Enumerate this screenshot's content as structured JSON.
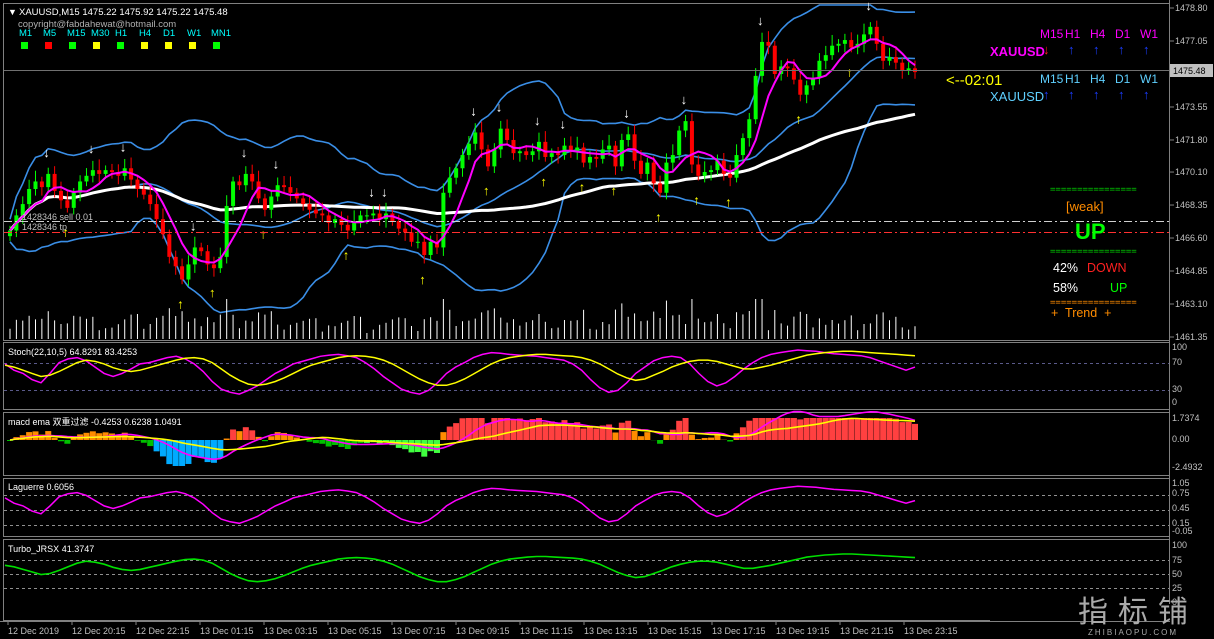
{
  "header": {
    "symbol_line": "XAUUSD,M15  1475.22 1475.92 1475.22 1475.48",
    "copyright": "copyright@fabdahewat@hotmail.com",
    "timeframes": [
      {
        "label": "M1",
        "color": "#00ff00"
      },
      {
        "label": "M5",
        "color": "#ff0000"
      },
      {
        "label": "M15",
        "color": "#00ff00"
      },
      {
        "label": "M30",
        "color": "#ffff00"
      },
      {
        "label": "H1",
        "color": "#00ff00"
      },
      {
        "label": "H4",
        "color": "#ffff00"
      },
      {
        "label": "D1",
        "color": "#ffff00"
      },
      {
        "label": "W1",
        "color": "#ffff00"
      },
      {
        "label": "MN1",
        "color": "#00ff00"
      }
    ]
  },
  "order_lines": {
    "sell_label": "1428346 sell 0.01",
    "tp_label": "1428346 tp"
  },
  "right_panel": {
    "row1": {
      "labels": [
        "M15",
        "H1",
        "H4",
        "D1",
        "W1"
      ],
      "arrows": [
        "down",
        "up",
        "up",
        "up",
        "up"
      ],
      "symbol": "XAUUSD"
    },
    "timer": "<--02:01",
    "row2": {
      "labels": [
        "M15",
        "H1",
        "H4",
        "D1",
        "W1"
      ],
      "arrows": [
        "up",
        "up",
        "up",
        "up",
        "up"
      ],
      "symbol": "XAUUSD"
    },
    "dashes": "================",
    "weak": "[weak]",
    "up_big": "UP",
    "down_pct": "42%",
    "down_label": "DOWN",
    "up_pct": "58%",
    "up_label": "UP",
    "trend": "+  Trend  +"
  },
  "price_axis": {
    "ticks": [
      "1478.80",
      "1477.05",
      "1475.48",
      "1473.55",
      "1471.80",
      "1470.10",
      "1468.35",
      "1466.60",
      "1464.85",
      "1463.10",
      "1461.35"
    ],
    "current": "1475.48"
  },
  "subwindows": {
    "stoch": {
      "title": "Stoch(22,10,5) 64.8291 83.4253",
      "ticks": [
        "100",
        "70",
        "30",
        "0"
      ]
    },
    "macd": {
      "title": "macd ema 双重过滤 -0.4253 0.6238 1.0491",
      "ticks": [
        "1.7374",
        "0.00",
        "-2.4932"
      ]
    },
    "laguerre": {
      "title": "Laguerre 0.6056",
      "ticks": [
        "1.05",
        "0.75",
        "0.45",
        "0.15",
        "-0.05"
      ]
    },
    "turbo": {
      "title": "Turbo_JRSX 41.3747",
      "ticks": [
        "100",
        "75",
        "50",
        "25",
        "0"
      ]
    }
  },
  "time_axis": [
    "12 Dec 2019",
    "12 Dec 20:15",
    "12 Dec 22:15",
    "13 Dec 01:15",
    "13 Dec 03:15",
    "13 Dec 05:15",
    "13 Dec 07:15",
    "13 Dec 09:15",
    "13 Dec 11:15",
    "13 Dec 13:15",
    "13 Dec 15:15",
    "13 Dec 17:15",
    "13 Dec 19:15",
    "13 Dec 21:15",
    "13 Dec 23:15"
  ],
  "watermark": {
    "big": "指标铺",
    "small": "ZHIBIAOPU.COM"
  },
  "colors": {
    "bull": "#00ff00",
    "bear": "#ff0000",
    "band": "#3a8ee6",
    "ma": "#ffffff",
    "magenta": "#ff00ff",
    "yellow": "#ffff00",
    "grid": "#808080"
  },
  "chart_data": {
    "type": "candlestick",
    "symbol": "XAUUSD",
    "timeframe": "M15",
    "ylim": [
      1461.35,
      1478.8
    ],
    "close": [
      1467.0,
      1467.8,
      1468.4,
      1469.2,
      1469.6,
      1469.3,
      1470.0,
      1469.1,
      1468.6,
      1468.2,
      1469.0,
      1469.6,
      1469.9,
      1470.2,
      1470.0,
      1470.2,
      1470.1,
      1469.9,
      1470.3,
      1469.7,
      1469.2,
      1468.9,
      1468.4,
      1467.6,
      1466.8,
      1465.6,
      1465.1,
      1464.4,
      1465.2,
      1466.1,
      1465.9,
      1465.2,
      1465.0,
      1465.6,
      1468.3,
      1469.6,
      1469.4,
      1470.0,
      1469.6,
      1468.7,
      1468.1,
      1468.8,
      1469.4,
      1469.3,
      1469.0,
      1468.7,
      1468.4,
      1468.1,
      1467.9,
      1467.8,
      1467.4,
      1467.6,
      1467.3,
      1467.0,
      1467.5,
      1467.8,
      1467.8,
      1467.9,
      1467.6,
      1467.9,
      1467.5,
      1467.1,
      1466.9,
      1466.4,
      1466.4,
      1465.7,
      1466.4,
      1466.1,
      1469.0,
      1469.8,
      1470.3,
      1471.0,
      1471.6,
      1472.2,
      1471.3,
      1470.4,
      1471.3,
      1472.4,
      1471.8,
      1471.1,
      1471.2,
      1471.0,
      1471.2,
      1471.7,
      1470.9,
      1471.1,
      1471.0,
      1471.5,
      1471.2,
      1471.4,
      1470.6,
      1470.9,
      1470.8,
      1471.3,
      1471.5,
      1470.4,
      1471.8,
      1472.1,
      1470.7,
      1470.0,
      1470.6,
      1469.5,
      1469.0,
      1470.6,
      1471.0,
      1472.3,
      1472.8,
      1470.5,
      1469.9,
      1470.1,
      1470.2,
      1470.7,
      1470.0,
      1469.8,
      1471.0,
      1471.9,
      1472.9,
      1475.2,
      1477.0,
      1476.8,
      1475.3,
      1475.7,
      1475.6,
      1475.0,
      1474.2,
      1474.7,
      1475.1,
      1476.0,
      1476.3,
      1476.8,
      1476.9,
      1477.1,
      1476.7,
      1476.9,
      1477.4,
      1477.8,
      1476.9,
      1476.0,
      1476.2,
      1475.9,
      1475.5,
      1475.6,
      1475.4
    ],
    "stoch_k": [
      70,
      60,
      55,
      45,
      40,
      55,
      72,
      78,
      80,
      75,
      65,
      55,
      50,
      55,
      62,
      70,
      72,
      76,
      80,
      82,
      78,
      70,
      58,
      42,
      30,
      25,
      22,
      28,
      35,
      45,
      55,
      62,
      70,
      74,
      78,
      82,
      84,
      85,
      83,
      80,
      72,
      62,
      50,
      40,
      30,
      25,
      22,
      28,
      40,
      55,
      65,
      72,
      80,
      85,
      88,
      87,
      85,
      84,
      83,
      82,
      80,
      78,
      76,
      70,
      60,
      45,
      32,
      25,
      28,
      40,
      55,
      65,
      75,
      80,
      82,
      80,
      70,
      55,
      42,
      35,
      40,
      50,
      62,
      72,
      80,
      85,
      88,
      90,
      92,
      91,
      90,
      88,
      86,
      85,
      84,
      83,
      80,
      75,
      70,
      65,
      60,
      65
    ],
    "stoch_d": [
      68,
      65,
      60,
      55,
      50,
      52,
      58,
      65,
      72,
      76,
      74,
      70,
      64,
      60,
      58,
      60,
      64,
      68,
      72,
      76,
      79,
      80,
      78,
      72,
      62,
      52,
      44,
      38,
      36,
      38,
      42,
      48,
      55,
      62,
      68,
      72,
      76,
      80,
      82,
      83,
      82,
      80,
      76,
      70,
      62,
      54,
      46,
      40,
      36,
      36,
      40,
      46,
      54,
      62,
      70,
      76,
      80,
      82,
      84,
      85,
      85,
      84,
      83,
      82,
      80,
      76,
      70,
      62,
      54,
      48,
      44,
      46,
      52,
      58,
      65,
      70,
      74,
      76,
      76,
      74,
      70,
      66,
      62,
      62,
      65,
      68,
      72,
      76,
      80,
      84,
      86,
      88,
      89,
      90,
      90,
      89,
      88,
      87,
      86,
      85,
      84,
      83
    ]
  }
}
